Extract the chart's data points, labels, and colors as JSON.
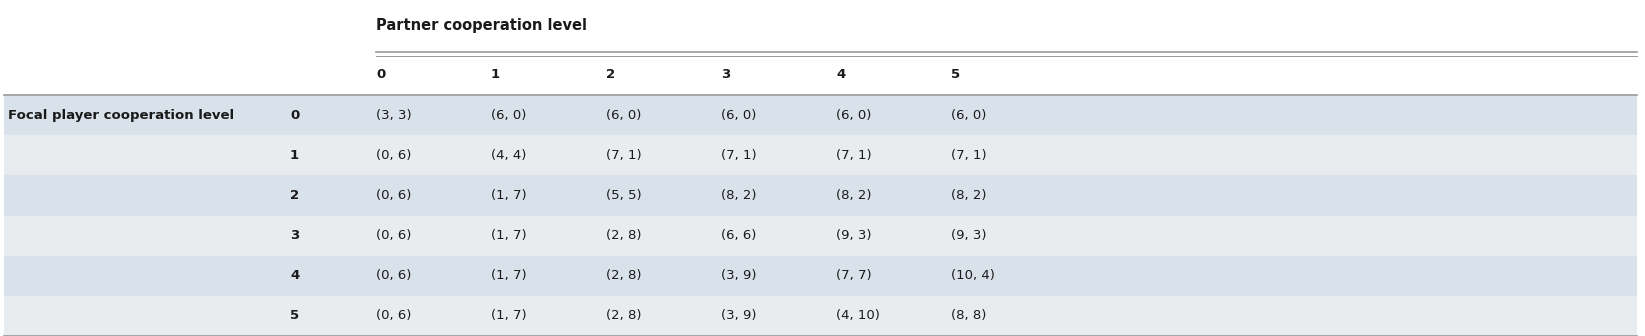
{
  "title": "Partner cooperation level",
  "row_label": "Focal player cooperation level",
  "row_numbers": [
    "0",
    "1",
    "2",
    "3",
    "4",
    "5"
  ],
  "payoffs": [
    [
      "(3, 3)",
      "(6, 0)",
      "(6, 0)",
      "(6, 0)",
      "(6, 0)",
      "(6, 0)"
    ],
    [
      "(0, 6)",
      "(4, 4)",
      "(7, 1)",
      "(7, 1)",
      "(7, 1)",
      "(7, 1)"
    ],
    [
      "(0, 6)",
      "(1, 7)",
      "(5, 5)",
      "(8, 2)",
      "(8, 2)",
      "(8, 2)"
    ],
    [
      "(0, 6)",
      "(1, 7)",
      "(2, 8)",
      "(6, 6)",
      "(9, 3)",
      "(9, 3)"
    ],
    [
      "(0, 6)",
      "(1, 7)",
      "(2, 8)",
      "(3, 9)",
      "(7, 7)",
      "(10, 4)"
    ],
    [
      "(0, 6)",
      "(1, 7)",
      "(2, 8)",
      "(3, 9)",
      "(4, 10)",
      "(8, 8)"
    ]
  ],
  "bg_color_light": "#d9e1ea",
  "bg_color_lighter": "#e8ecef",
  "bg_color_white": "#ffffff",
  "line_color": "#999999",
  "text_color": "#1a1a1a",
  "font_size_title": 10.5,
  "font_size_body": 9.5,
  "font_size_header": 9.5,
  "fig_width": 16.45,
  "fig_height": 3.36,
  "dpi": 100
}
